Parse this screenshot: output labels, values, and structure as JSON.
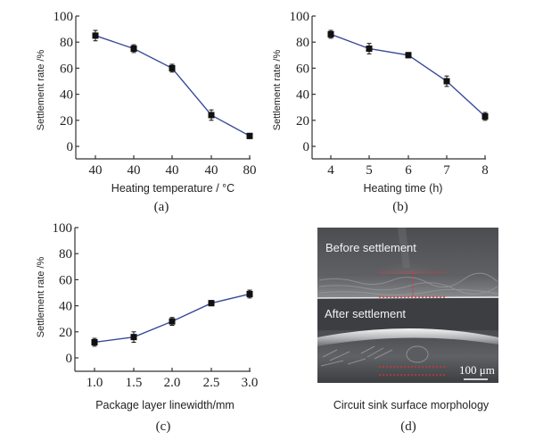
{
  "colors": {
    "line": "#3a4a9a",
    "marker": "#111111",
    "axis": "#333333",
    "sem_bg": "#55575b",
    "sem_marker": "#e0313a"
  },
  "chart_data": [
    {
      "panel": "(a)",
      "type": "line",
      "title": "",
      "xlabel": "Heating temperature / °C",
      "ylabel": "Settlement rate /%",
      "categories": [
        "40",
        "40",
        "40",
        "40",
        "80"
      ],
      "values": [
        85,
        75,
        60,
        24,
        8
      ],
      "error": [
        4,
        3,
        3,
        4,
        2
      ],
      "yticks": [
        0,
        20,
        40,
        60,
        80,
        100
      ],
      "ylim": [
        -10,
        100
      ],
      "grid": false,
      "legend": null
    },
    {
      "panel": "(b)",
      "type": "line",
      "title": "",
      "xlabel": "Heating time (h)",
      "ylabel": "Settlement rate /%",
      "categories": [
        "4",
        "5",
        "6",
        "7",
        "8"
      ],
      "values": [
        86,
        75,
        70,
        50,
        23
      ],
      "error": [
        3,
        4,
        2,
        4,
        3
      ],
      "yticks": [
        0,
        20,
        40,
        60,
        80,
        100
      ],
      "ylim": [
        -10,
        100
      ],
      "grid": false,
      "legend": null
    },
    {
      "panel": "(c)",
      "type": "line",
      "title": "",
      "xlabel": "Package layer linewidth/mm",
      "ylabel": "Settlement rate /%",
      "categories": [
        "1.0",
        "1.5",
        "2.0",
        "2.5",
        "3.0"
      ],
      "values": [
        12,
        16,
        28,
        42,
        49
      ],
      "error": [
        3,
        4,
        3,
        2,
        3
      ],
      "yticks": [
        0,
        20,
        40,
        60,
        80,
        100
      ],
      "ylim": [
        -10,
        100
      ],
      "grid": false,
      "legend": null
    }
  ],
  "panels": {
    "a": {
      "label": "(a)",
      "xlabel": "Heating temperature / °C",
      "ylabel": "Settlement rate /%",
      "xticks": [
        "40",
        "40",
        "40",
        "40",
        "80"
      ],
      "yticks": [
        "0",
        "20",
        "40",
        "60",
        "80",
        "100"
      ]
    },
    "b": {
      "label": "(b)",
      "xlabel": "Heating time (h)",
      "ylabel": "Settlement rate /%",
      "xticks": [
        "4",
        "5",
        "6",
        "7",
        "8"
      ],
      "yticks": [
        "0",
        "20",
        "40",
        "60",
        "80",
        "100"
      ]
    },
    "c": {
      "label": "(c)",
      "xlabel": "Package layer linewidth/mm",
      "ylabel": "Settlement rate /%",
      "xticks": [
        "1.0",
        "1.5",
        "2.0",
        "2.5",
        "3.0"
      ],
      "yticks": [
        "0",
        "20",
        "40",
        "60",
        "80",
        "100"
      ]
    },
    "d": {
      "label": "(d)",
      "caption": "Circuit sink surface morphology",
      "before_label": "Before settlement",
      "after_label": "After settlement",
      "scale_bar": "100 μm"
    }
  }
}
